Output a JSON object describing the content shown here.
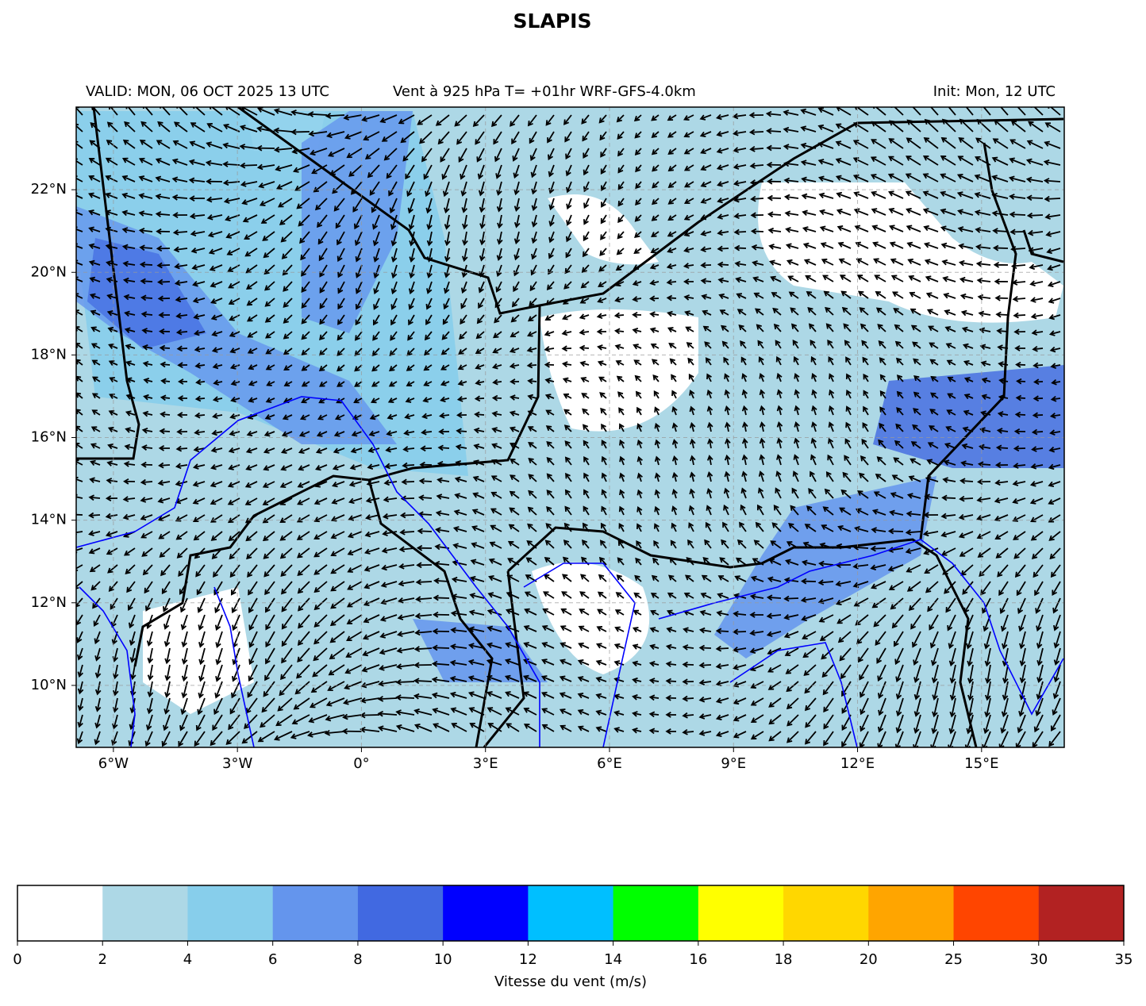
{
  "title": "SLAPIS",
  "subtitle_left": "VALID: MON, 06 OCT 2025 13 UTC",
  "subtitle_center": "Vent à 925 hPa T= +01hr  WRF-GFS-4.0km",
  "subtitle_right": "Init: Mon, 12 UTC",
  "map": {
    "xlim": [
      -6.9,
      17
    ],
    "ylim": [
      8.5,
      24
    ],
    "xticks": [
      {
        "value": -6,
        "label": "6°W"
      },
      {
        "value": -3,
        "label": "3°W"
      },
      {
        "value": 0,
        "label": "0°"
      },
      {
        "value": 3,
        "label": "3°E"
      },
      {
        "value": 6,
        "label": "6°E"
      },
      {
        "value": 9,
        "label": "9°E"
      },
      {
        "value": 12,
        "label": "12°E"
      },
      {
        "value": 15,
        "label": "15°E"
      }
    ],
    "yticks": [
      {
        "value": 10,
        "label": "10°N"
      },
      {
        "value": 12,
        "label": "12°N"
      },
      {
        "value": 14,
        "label": "14°N"
      },
      {
        "value": 16,
        "label": "16°N"
      },
      {
        "value": 18,
        "label": "18°N"
      },
      {
        "value": 20,
        "label": "20°N"
      },
      {
        "value": 22,
        "label": "22°N"
      }
    ]
  },
  "colorbar": {
    "label": "Vitesse du vent (m/s)",
    "ticks": [
      0,
      2,
      4,
      6,
      8,
      10,
      12,
      14,
      16,
      18,
      20,
      25,
      30,
      35
    ],
    "colors": [
      "#ffffff",
      "#add8e6",
      "#87ceeb",
      "#6495ed",
      "#4169e1",
      "#0000ff",
      "#00bfff",
      "#00ff00",
      "#ffff00",
      "#ffd700",
      "#ffa500",
      "#ff4500",
      "#b22222"
    ]
  }
}
